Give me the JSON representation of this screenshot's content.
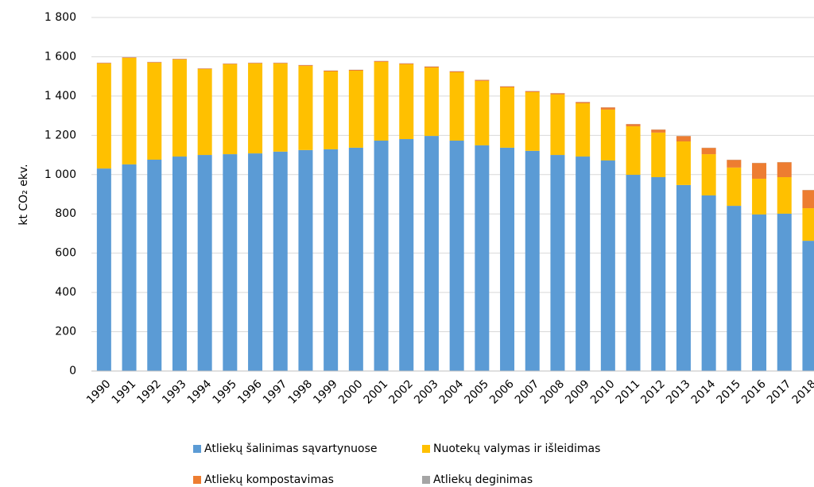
{
  "chart_data": {
    "type": "stacked-bar",
    "y_label": "kt CO₂ ekv.",
    "categories": [
      "1990",
      "1991",
      "1992",
      "1993",
      "1994",
      "1995",
      "1996",
      "1997",
      "1998",
      "1999",
      "2000",
      "2001",
      "2002",
      "2003",
      "2004",
      "2005",
      "2006",
      "2007",
      "2008",
      "2009",
      "2010",
      "2011",
      "2012",
      "2013",
      "2014",
      "2015",
      "2016",
      "2017",
      "2018"
    ],
    "series": [
      {
        "name": "Atliekų šalinimas sąvartynuose",
        "color": "#5b9bd5",
        "values": [
          1031,
          1052,
          1076,
          1092,
          1100,
          1104,
          1108,
          1117,
          1125,
          1129,
          1137,
          1173,
          1181,
          1197,
          1173,
          1149,
          1137,
          1121,
          1100,
          1092,
          1072,
          999,
          987,
          947,
          894,
          841,
          797,
          801,
          663
        ]
      },
      {
        "name": "Nuotekų valymas ir išleidimas",
        "color": "#ffc000",
        "values": [
          535,
          542,
          494,
          494,
          437,
          458,
          458,
          449,
          428,
          396,
          392,
          401,
          381,
          348,
          348,
          328,
          307,
          299,
          308,
          271,
          259,
          247,
          227,
          222,
          210,
          195,
          182,
          186,
          166
        ]
      },
      {
        "name": "Atliekų kompostavimas",
        "color": "#ed7d31",
        "values": [
          3,
          3,
          3,
          3,
          3,
          3,
          3,
          3,
          4,
          4,
          4,
          4,
          4,
          5,
          5,
          5,
          5,
          5,
          6,
          6,
          11,
          11,
          15,
          27,
          32,
          39,
          80,
          76,
          92
        ]
      },
      {
        "name": "Atliekų deginimas",
        "color": "#a5a5a5",
        "values": [
          1,
          1,
          1,
          1,
          1,
          1,
          1,
          1,
          1,
          1,
          1,
          1,
          1,
          1,
          1,
          1,
          1,
          1,
          1,
          1,
          1,
          1,
          1,
          1,
          1,
          1,
          1,
          1,
          1
        ]
      }
    ],
    "ylim": [
      0,
      1800
    ],
    "yticks": [
      0,
      200,
      400,
      600,
      800,
      {
        "value": 1000,
        "label": "1 000"
      },
      {
        "value": 1200,
        "label": "1 200"
      },
      {
        "value": 1400,
        "label": "1 400"
      },
      {
        "value": 1600,
        "label": "1 600"
      },
      {
        "value": 1800,
        "label": "1 800"
      }
    ],
    "grid": true
  }
}
